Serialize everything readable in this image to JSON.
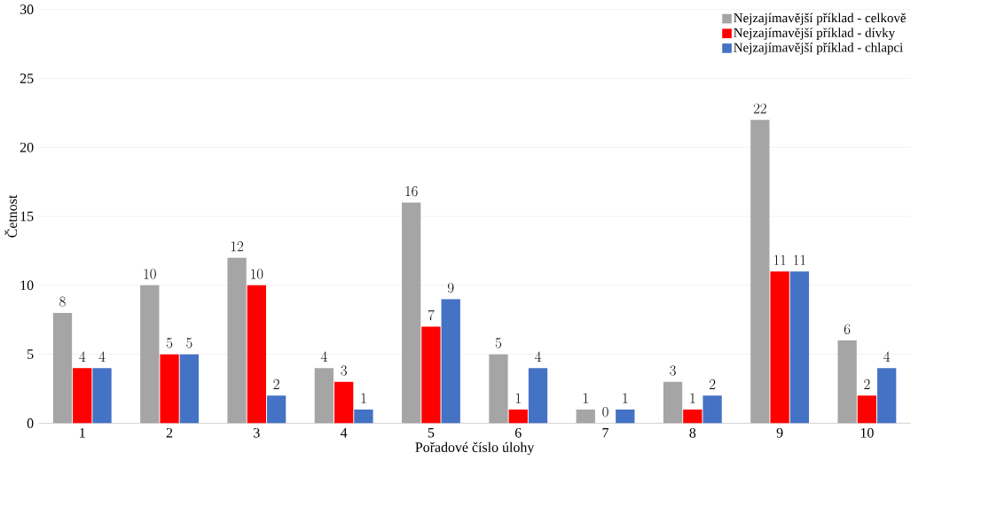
{
  "chart_data": {
    "type": "bar",
    "xlabel": "Pořadové číslo úlohy",
    "ylabel": "Četnost",
    "categories": [
      "1",
      "2",
      "3",
      "4",
      "5",
      "6",
      "7",
      "8",
      "9",
      "10"
    ],
    "series": [
      {
        "name": "Nejzajímavější příklad - celkově",
        "color": "#a5a5a5",
        "values": [
          8,
          10,
          12,
          4,
          16,
          5,
          1,
          3,
          22,
          6
        ]
      },
      {
        "name": "Nejzajímavější příklad - dívky",
        "color": "#ff0000",
        "values": [
          4,
          5,
          10,
          3,
          7,
          1,
          0,
          1,
          11,
          2
        ]
      },
      {
        "name": "Nejzajímavější příklad - chlapci",
        "color": "#4472c4",
        "values": [
          4,
          5,
          2,
          1,
          9,
          4,
          1,
          2,
          11,
          4
        ]
      }
    ],
    "ylim": [
      0,
      30
    ],
    "yticks": [
      0,
      5,
      10,
      15,
      20,
      25,
      30
    ],
    "grid": "y",
    "legend": "top right",
    "data_labels": true
  }
}
